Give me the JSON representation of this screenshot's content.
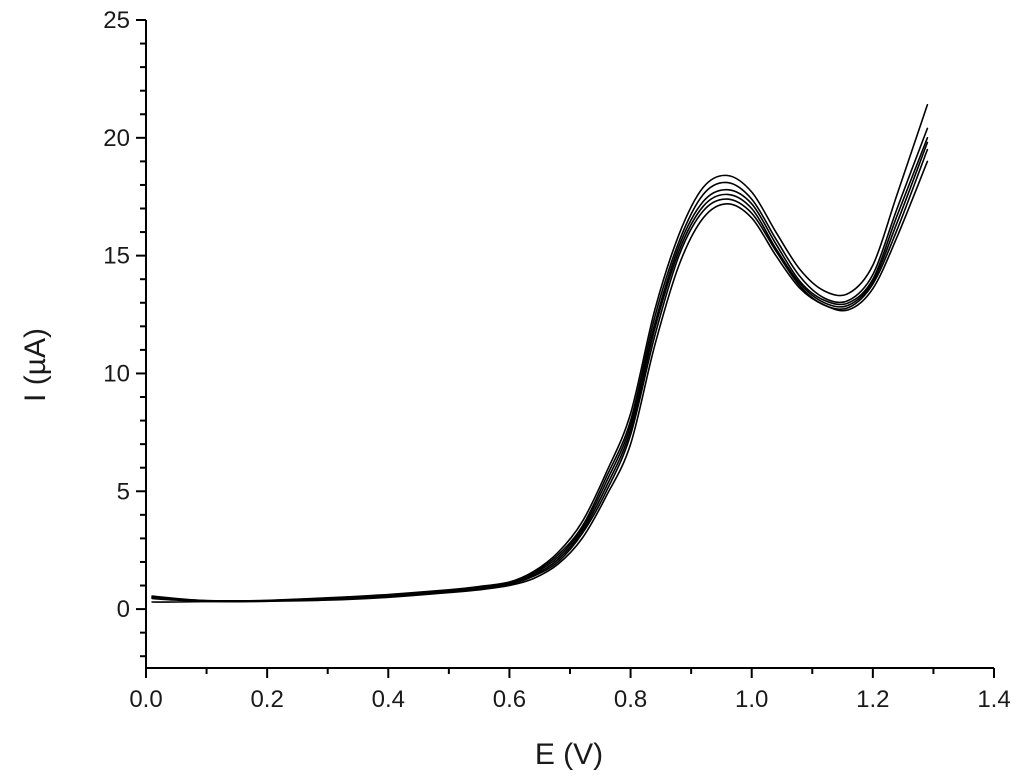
{
  "chart_data": {
    "type": "line",
    "title": "",
    "xlabel": "E (V)",
    "ylabel": "I (µA)",
    "xlim": [
      0.0,
      1.4
    ],
    "ylim": [
      -2.5,
      25
    ],
    "x_ticks": [
      "0.0",
      "0.2",
      "0.4",
      "0.6",
      "0.8",
      "1.0",
      "1.2",
      "1.4"
    ],
    "y_ticks": [
      "0",
      "5",
      "10",
      "15",
      "20",
      "25"
    ],
    "grid": false,
    "legend": "none",
    "line_color": "#000000",
    "x": [
      0.01,
      0.05,
      0.1,
      0.15,
      0.2,
      0.3,
      0.4,
      0.5,
      0.55,
      0.6,
      0.64,
      0.68,
      0.72,
      0.76,
      0.8,
      0.84,
      0.88,
      0.92,
      0.96,
      1.0,
      1.04,
      1.08,
      1.12,
      1.16,
      1.2,
      1.24,
      1.29
    ],
    "series": [
      {
        "values": [
          0.55,
          0.45,
          0.35,
          0.32,
          0.33,
          0.38,
          0.5,
          0.7,
          0.82,
          1.0,
          1.3,
          1.9,
          3.0,
          4.8,
          7.0,
          11.2,
          14.6,
          16.6,
          17.2,
          16.6,
          15.0,
          13.6,
          12.9,
          12.7,
          13.6,
          15.8,
          19.0
        ]
      },
      {
        "values": [
          0.3,
          0.3,
          0.32,
          0.33,
          0.35,
          0.4,
          0.52,
          0.72,
          0.85,
          1.05,
          1.4,
          2.0,
          3.2,
          5.0,
          7.4,
          11.6,
          15.0,
          16.9,
          17.4,
          16.8,
          15.2,
          13.7,
          12.9,
          12.8,
          13.8,
          16.1,
          19.5
        ]
      },
      {
        "values": [
          0.45,
          0.38,
          0.33,
          0.32,
          0.34,
          0.42,
          0.55,
          0.75,
          0.88,
          1.08,
          1.45,
          2.1,
          3.3,
          5.2,
          7.6,
          11.9,
          15.2,
          17.1,
          17.6,
          17.0,
          15.3,
          13.8,
          13.0,
          12.9,
          13.9,
          16.4,
          19.8
        ]
      },
      {
        "values": [
          0.5,
          0.4,
          0.34,
          0.33,
          0.35,
          0.44,
          0.58,
          0.78,
          0.9,
          1.1,
          1.5,
          2.2,
          3.4,
          5.4,
          7.8,
          12.1,
          15.4,
          17.3,
          17.8,
          17.2,
          15.5,
          13.9,
          13.1,
          13.0,
          14.0,
          16.7,
          20.0
        ]
      },
      {
        "values": [
          0.5,
          0.42,
          0.35,
          0.34,
          0.36,
          0.46,
          0.6,
          0.8,
          0.93,
          1.12,
          1.55,
          2.3,
          3.5,
          5.6,
          8.0,
          12.4,
          15.6,
          17.6,
          18.1,
          17.4,
          15.7,
          14.1,
          13.2,
          13.1,
          14.2,
          17.0,
          20.4
        ]
      },
      {
        "values": [
          0.5,
          0.42,
          0.36,
          0.35,
          0.37,
          0.48,
          0.62,
          0.82,
          0.96,
          1.15,
          1.6,
          2.4,
          3.7,
          5.8,
          8.3,
          12.7,
          15.9,
          17.9,
          18.4,
          17.7,
          16.0,
          14.4,
          13.5,
          13.4,
          14.6,
          17.6,
          21.4
        ]
      }
    ]
  }
}
